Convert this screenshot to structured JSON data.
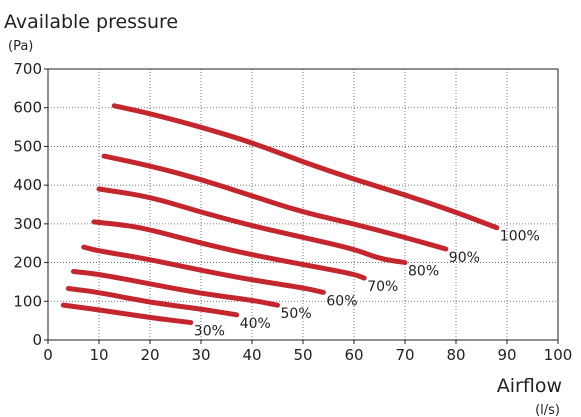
{
  "chart_data": {
    "type": "line",
    "title": "Available pressure",
    "ylabel_unit": "(Pa)",
    "xlabel": "Airflow",
    "xlabel_unit": "(l/s)",
    "xlim": [
      0,
      100
    ],
    "ylim": [
      0,
      700
    ],
    "xticks": [
      "0",
      "10",
      "20",
      "30",
      "40",
      "50",
      "60",
      "70",
      "80",
      "90",
      "100"
    ],
    "yticks": [
      "0",
      "100",
      "200",
      "300",
      "400",
      "500",
      "600",
      "700"
    ],
    "grid": true,
    "legend": "inline-end-labels",
    "series_color": "#c4262e",
    "series": [
      {
        "name": "30%",
        "x": [
          3,
          10,
          20,
          28
        ],
        "y": [
          90,
          78,
          58,
          45
        ]
      },
      {
        "name": "40%",
        "x": [
          4,
          10,
          20,
          30,
          37
        ],
        "y": [
          133,
          123,
          97,
          80,
          65
        ]
      },
      {
        "name": "50%",
        "x": [
          5,
          10,
          20,
          30,
          40,
          45
        ],
        "y": [
          177,
          170,
          145,
          120,
          103,
          90
        ]
      },
      {
        "name": "60%",
        "x": [
          7,
          10,
          20,
          30,
          40,
          50,
          54
        ],
        "y": [
          240,
          230,
          208,
          180,
          155,
          135,
          123
        ]
      },
      {
        "name": "70%",
        "x": [
          9,
          15,
          20,
          30,
          40,
          50,
          60,
          62
        ],
        "y": [
          305,
          297,
          285,
          250,
          220,
          195,
          170,
          160
        ]
      },
      {
        "name": "80%",
        "x": [
          10,
          20,
          30,
          40,
          50,
          60,
          65,
          70
        ],
        "y": [
          390,
          370,
          330,
          295,
          265,
          235,
          210,
          200
        ]
      },
      {
        "name": "90%",
        "x": [
          11,
          20,
          30,
          40,
          50,
          60,
          70,
          78
        ],
        "y": [
          475,
          450,
          415,
          372,
          330,
          300,
          265,
          235
        ]
      },
      {
        "name": "100%",
        "x": [
          13,
          20,
          30,
          40,
          50,
          60,
          70,
          80,
          88
        ],
        "y": [
          605,
          585,
          550,
          510,
          460,
          415,
          375,
          330,
          290
        ]
      }
    ]
  }
}
